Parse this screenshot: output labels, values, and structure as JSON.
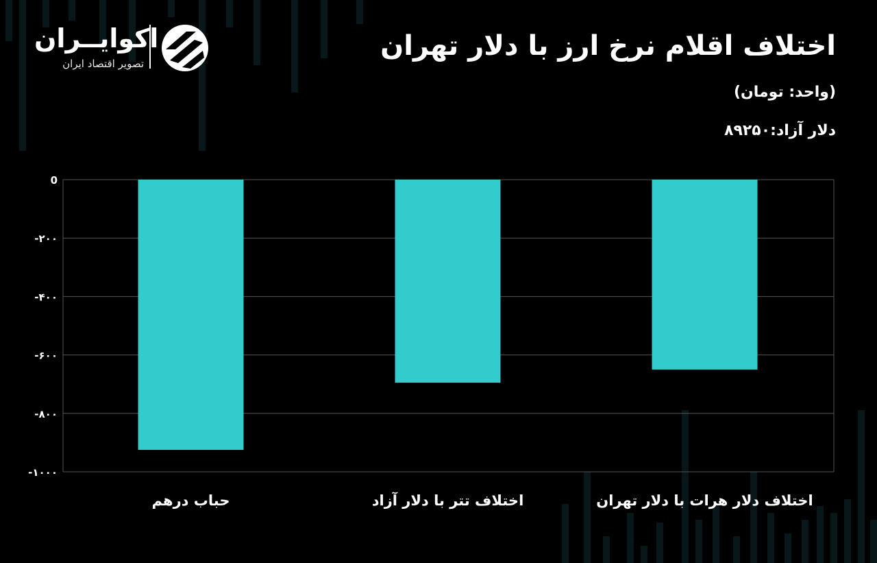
{
  "header": {
    "logo_name": "اکوایــران",
    "logo_subtitle": "تصویر اقتصاد ایران",
    "title": "اختلاف اقلام نرخ ارز با دلار تهران",
    "unit": "(واحد: تومان)",
    "note": "دلار آزاد:۸۹۲۵۰"
  },
  "colors": {
    "bar": "#33cccc",
    "background": "#000000",
    "grid": "#555555",
    "text": "#ffffff"
  },
  "chart_data": {
    "type": "bar",
    "categories": [
      "حباب درهم",
      "اختلاف تتر با دلار آزاد",
      "اختلاف دلار هرات با دلار تهران"
    ],
    "values": [
      -925,
      -695,
      -650
    ],
    "yticks": [
      0,
      -200,
      -400,
      -600,
      -800,
      -1000
    ],
    "ytick_labels": [
      "0",
      "-۲۰۰",
      "-۴۰۰",
      "-۶۰۰",
      "-۸۰۰",
      "-۱۰۰۰"
    ],
    "ylim": [
      -1000,
      0
    ],
    "grid": true,
    "legend": "none"
  }
}
